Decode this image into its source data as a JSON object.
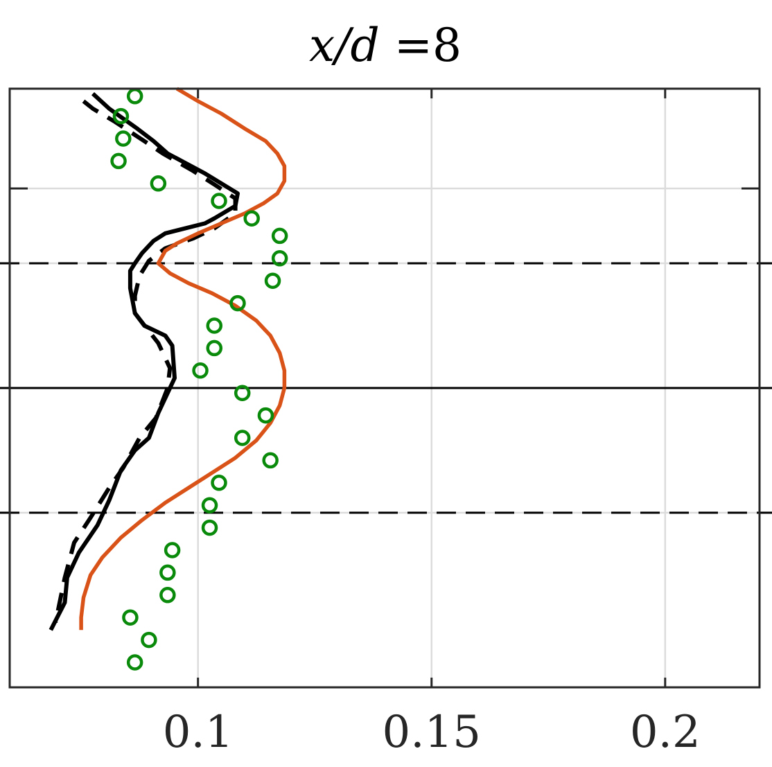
{
  "chart_data": {
    "type": "line",
    "title_parts": {
      "var": "x/d",
      "op": " =",
      "num": "8"
    },
    "x_tick_labels": [
      "0.1",
      "0.15",
      "0.2"
    ],
    "x_ticks": [
      0.1,
      0.15,
      0.2
    ],
    "xlim": [
      0.0597,
      0.2202
    ],
    "ylim": [
      -1.2,
      1.2
    ],
    "y_ticks": [
      -1.2,
      -0.5,
      0.0,
      0.5,
      1.2
    ],
    "y_ticks_short": [
      0.8
    ],
    "grid": true,
    "reference_lines": [
      {
        "y": 0.5,
        "style": "dashed"
      },
      {
        "y": 0.0,
        "style": "solid"
      },
      {
        "y": -0.5,
        "style": "dashed"
      }
    ],
    "colors": {
      "line_solid": "#000000",
      "line_dashed": "#000000",
      "line_model": "#d95319",
      "markers": "#0a8a0a",
      "grid": "#dcdcdc",
      "axes": "#262626"
    },
    "series": [
      {
        "style": "solid-black",
        "points": [
          [
            0.0775,
            1.18
          ],
          [
            0.081,
            1.12
          ],
          [
            0.087,
            1.04
          ],
          [
            0.0905,
            0.99
          ],
          [
            0.0935,
            0.94
          ],
          [
            0.1015,
            0.86
          ],
          [
            0.1085,
            0.78
          ],
          [
            0.108,
            0.73
          ],
          [
            0.1035,
            0.68
          ],
          [
            0.1015,
            0.66
          ],
          [
            0.093,
            0.62
          ],
          [
            0.0905,
            0.59
          ],
          [
            0.088,
            0.54
          ],
          [
            0.0865,
            0.5
          ],
          [
            0.0855,
            0.47
          ],
          [
            0.0855,
            0.4
          ],
          [
            0.0865,
            0.3
          ],
          [
            0.0885,
            0.25
          ],
          [
            0.093,
            0.21
          ],
          [
            0.0945,
            0.17
          ],
          [
            0.095,
            0.04
          ],
          [
            0.0935,
            -0.02
          ],
          [
            0.0915,
            -0.1
          ],
          [
            0.0895,
            -0.2
          ],
          [
            0.0865,
            -0.25
          ],
          [
            0.0835,
            -0.33
          ],
          [
            0.081,
            -0.45
          ],
          [
            0.0785,
            -0.55
          ],
          [
            0.0745,
            -0.66
          ],
          [
            0.072,
            -0.76
          ],
          [
            0.0715,
            -0.86
          ],
          [
            0.0685,
            -0.97
          ]
        ]
      },
      {
        "style": "dashed-black",
        "points": [
          [
            0.0755,
            1.15
          ],
          [
            0.0775,
            1.12
          ],
          [
            0.082,
            1.07
          ],
          [
            0.0885,
            0.99
          ],
          [
            0.0925,
            0.94
          ],
          [
            0.099,
            0.87
          ],
          [
            0.104,
            0.81
          ],
          [
            0.108,
            0.76
          ],
          [
            0.108,
            0.7
          ],
          [
            0.1035,
            0.64
          ],
          [
            0.099,
            0.6
          ],
          [
            0.093,
            0.56
          ],
          [
            0.0895,
            0.51
          ],
          [
            0.0875,
            0.45
          ],
          [
            0.0865,
            0.37
          ],
          [
            0.0865,
            0.3
          ],
          [
            0.089,
            0.24
          ],
          [
            0.0915,
            0.18
          ],
          [
            0.094,
            0.08
          ],
          [
            0.0935,
            0.0
          ],
          [
            0.091,
            -0.12
          ],
          [
            0.0875,
            -0.2
          ],
          [
            0.084,
            -0.32
          ],
          [
            0.081,
            -0.4
          ],
          [
            0.077,
            -0.52
          ],
          [
            0.0735,
            -0.62
          ],
          [
            0.0715,
            -0.76
          ],
          [
            0.0695,
            -0.94
          ]
        ]
      },
      {
        "style": "orange-model",
        "points": [
          [
            0.0955,
            1.2
          ],
          [
            0.1,
            1.15
          ],
          [
            0.105,
            1.1
          ],
          [
            0.11,
            1.04
          ],
          [
            0.1145,
            0.99
          ],
          [
            0.117,
            0.94
          ],
          [
            0.1185,
            0.89
          ],
          [
            0.1185,
            0.83
          ],
          [
            0.117,
            0.78
          ],
          [
            0.114,
            0.74
          ],
          [
            0.11,
            0.7
          ],
          [
            0.105,
            0.66
          ],
          [
            0.1,
            0.62
          ],
          [
            0.0955,
            0.58
          ],
          [
            0.093,
            0.55
          ],
          [
            0.0915,
            0.5
          ],
          [
            0.094,
            0.46
          ],
          [
            0.098,
            0.42
          ],
          [
            0.103,
            0.38
          ],
          [
            0.108,
            0.33
          ],
          [
            0.1125,
            0.27
          ],
          [
            0.1155,
            0.21
          ],
          [
            0.1175,
            0.14
          ],
          [
            0.1185,
            0.07
          ],
          [
            0.1185,
            0.0
          ],
          [
            0.1175,
            -0.07
          ],
          [
            0.1155,
            -0.14
          ],
          [
            0.1125,
            -0.21
          ],
          [
            0.108,
            -0.28
          ],
          [
            0.103,
            -0.34
          ],
          [
            0.098,
            -0.4
          ],
          [
            0.093,
            -0.46
          ],
          [
            0.088,
            -0.53
          ],
          [
            0.0835,
            -0.6
          ],
          [
            0.0795,
            -0.68
          ],
          [
            0.077,
            -0.75
          ],
          [
            0.0755,
            -0.84
          ],
          [
            0.075,
            -0.92
          ],
          [
            0.075,
            -0.97
          ]
        ]
      }
    ],
    "markers": [
      [
        0.0865,
        1.17
      ],
      [
        0.0835,
        1.09
      ],
      [
        0.084,
        1.0
      ],
      [
        0.083,
        0.91
      ],
      [
        0.0915,
        0.82
      ],
      [
        0.1045,
        0.75
      ],
      [
        0.1115,
        0.68
      ],
      [
        0.1175,
        0.61
      ],
      [
        0.1175,
        0.52
      ],
      [
        0.116,
        0.43
      ],
      [
        0.1085,
        0.34
      ],
      [
        0.1035,
        0.25
      ],
      [
        0.1035,
        0.16
      ],
      [
        0.1005,
        0.07
      ],
      [
        0.1095,
        -0.02
      ],
      [
        0.1145,
        -0.11
      ],
      [
        0.1095,
        -0.2
      ],
      [
        0.1155,
        -0.29
      ],
      [
        0.1045,
        -0.38
      ],
      [
        0.1025,
        -0.47
      ],
      [
        0.1025,
        -0.56
      ],
      [
        0.0945,
        -0.65
      ],
      [
        0.0935,
        -0.74
      ],
      [
        0.0935,
        -0.83
      ],
      [
        0.0855,
        -0.92
      ],
      [
        0.0895,
        -1.01
      ],
      [
        0.0865,
        -1.1
      ]
    ]
  }
}
